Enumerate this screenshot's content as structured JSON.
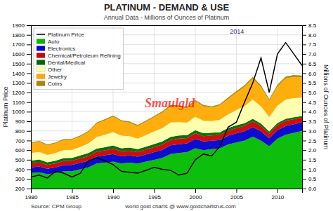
{
  "chart_data": {
    "type": "area",
    "title": "PLATINUM - DEMAND & USE",
    "subtitle": "Annual Data - Millions of Ounces of Platinum",
    "ylabel": "Platinum Price",
    "y2label": "Millions of Ounces of Platinum",
    "annotations": [
      "2014",
      "Smaulgld",
      "Source: CPM Group",
      "world gold charts @ www.goldchartsrus.com"
    ],
    "x": [
      1980,
      1981,
      1982,
      1983,
      1984,
      1985,
      1986,
      1987,
      1988,
      1989,
      1990,
      1991,
      1992,
      1993,
      1994,
      1995,
      1996,
      1997,
      1998,
      1999,
      2000,
      2001,
      2002,
      2003,
      2004,
      2005,
      2006,
      2007,
      2008,
      2009,
      2010,
      2011,
      2012,
      2013
    ],
    "xlim": [
      1980,
      2013
    ],
    "xticks": [
      1980,
      1985,
      1990,
      1995,
      2000,
      2005,
      2010
    ],
    "ylim": [
      200,
      1900
    ],
    "yticks": [
      200,
      300,
      400,
      500,
      600,
      700,
      800,
      900,
      1000,
      1100,
      1200,
      1300,
      1400,
      1500,
      1600,
      1700,
      1800,
      1900
    ],
    "y2lim": [
      0.0,
      8.5
    ],
    "y2ticks": [
      {
        "value": 0,
        "label": "0.0"
      },
      0.5,
      {
        "value": 1,
        "label": "1.0"
      },
      1.5,
      {
        "value": 2,
        "label": "2.0"
      },
      2.5,
      {
        "value": 3,
        "label": "3.0"
      },
      3.5,
      {
        "value": 4,
        "label": "4.0"
      },
      4.5,
      {
        "value": 5,
        "label": "5.0"
      },
      5.5,
      {
        "value": 6,
        "label": "6.0"
      },
      6.5,
      {
        "value": 7,
        "label": "7.0"
      },
      7.5,
      {
        "value": 8,
        "label": "8.0"
      },
      8.5
    ],
    "stacked": true,
    "grid": true,
    "legend": "upper left",
    "series": [
      {
        "name": "Platinum Price",
        "type": "line",
        "color": "black",
        "values": [
          320,
          340,
          310,
          380,
          360,
          320,
          360,
          490,
          520,
          490,
          450,
          380,
          370,
          360,
          390,
          420,
          400,
          390,
          340,
          360,
          500,
          560,
          540,
          640,
          840,
          890,
          1100,
          1300,
          1560,
          1200,
          1600,
          1720,
          1600,
          1480
        ]
      },
      {
        "name": "Auto",
        "type": "area",
        "axis": "y2",
        "color": "#00bb00",
        "values": [
          0.8,
          0.85,
          0.75,
          0.8,
          0.9,
          0.9,
          1.0,
          1.1,
          1.3,
          1.35,
          1.4,
          1.3,
          1.35,
          1.3,
          1.4,
          1.5,
          1.6,
          1.8,
          1.85,
          1.9,
          2.1,
          2.0,
          2.05,
          2.1,
          2.3,
          2.4,
          2.5,
          2.7,
          2.5,
          2.2,
          2.6,
          2.8,
          2.9,
          3.0
        ]
      },
      {
        "name": "Electronics",
        "type": "area",
        "axis": "y2",
        "color": "#0000cc",
        "values": [
          0.3,
          0.3,
          0.28,
          0.3,
          0.32,
          0.33,
          0.34,
          0.35,
          0.37,
          0.38,
          0.4,
          0.38,
          0.37,
          0.36,
          0.38,
          0.4,
          0.42,
          0.45,
          0.46,
          0.45,
          0.48,
          0.45,
          0.44,
          0.43,
          0.45,
          0.47,
          0.48,
          0.5,
          0.48,
          0.42,
          0.44,
          0.46,
          0.45,
          0.44
        ]
      },
      {
        "name": "Chemical/Petroleum Refining",
        "type": "area",
        "axis": "y2",
        "color": "#cc0000",
        "values": [
          0.2,
          0.21,
          0.2,
          0.21,
          0.22,
          0.22,
          0.23,
          0.24,
          0.25,
          0.26,
          0.27,
          0.26,
          0.25,
          0.24,
          0.25,
          0.26,
          0.27,
          0.28,
          0.29,
          0.28,
          0.3,
          0.28,
          0.27,
          0.26,
          0.27,
          0.28,
          0.29,
          0.3,
          0.28,
          0.24,
          0.26,
          0.27,
          0.26,
          0.25
        ]
      },
      {
        "name": "Dental/Medical",
        "type": "area",
        "axis": "y2",
        "color": "#006600",
        "values": [
          0.15,
          0.15,
          0.14,
          0.14,
          0.15,
          0.15,
          0.15,
          0.16,
          0.16,
          0.16,
          0.17,
          0.16,
          0.16,
          0.15,
          0.15,
          0.16,
          0.16,
          0.16,
          0.16,
          0.15,
          0.16,
          0.15,
          0.15,
          0.14,
          0.14,
          0.14,
          0.13,
          0.13,
          0.12,
          0.11,
          0.11,
          0.1,
          0.1,
          0.09
        ]
      },
      {
        "name": "Other",
        "type": "area",
        "axis": "y2",
        "color": "#ffffaa",
        "values": [
          0.4,
          0.4,
          0.38,
          0.4,
          0.42,
          0.42,
          0.44,
          0.5,
          0.6,
          0.65,
          0.7,
          0.65,
          0.6,
          0.55,
          0.6,
          0.65,
          0.7,
          0.75,
          0.7,
          0.65,
          0.7,
          0.65,
          0.6,
          0.65,
          0.7,
          0.8,
          0.9,
          1.0,
          0.9,
          0.75,
          0.9,
          1.0,
          1.0,
          0.95
        ]
      },
      {
        "name": "Jewelry",
        "type": "area",
        "axis": "y2",
        "color": "#ffaa00",
        "values": [
          0.5,
          0.52,
          0.5,
          0.5,
          0.52,
          0.52,
          0.55,
          0.6,
          0.7,
          0.75,
          0.8,
          0.75,
          0.7,
          0.65,
          0.7,
          0.75,
          0.8,
          0.85,
          0.8,
          0.75,
          0.8,
          0.75,
          0.7,
          0.75,
          0.8,
          0.9,
          1.0,
          1.1,
          1.0,
          0.85,
          1.0,
          1.1,
          1.1,
          1.05
        ]
      },
      {
        "name": "Coins",
        "type": "area",
        "axis": "y2",
        "color": "#aa8800",
        "values": [
          0.05,
          0.05,
          0.05,
          0.05,
          0.05,
          0.05,
          0.05,
          0.05,
          0.06,
          0.06,
          0.06,
          0.06,
          0.06,
          0.06,
          0.06,
          0.06,
          0.07,
          0.07,
          0.07,
          0.07,
          0.07,
          0.07,
          0.07,
          0.07,
          0.08,
          0.08,
          0.08,
          0.09,
          0.09,
          0.08,
          0.09,
          0.1,
          0.1,
          0.1
        ]
      }
    ]
  }
}
